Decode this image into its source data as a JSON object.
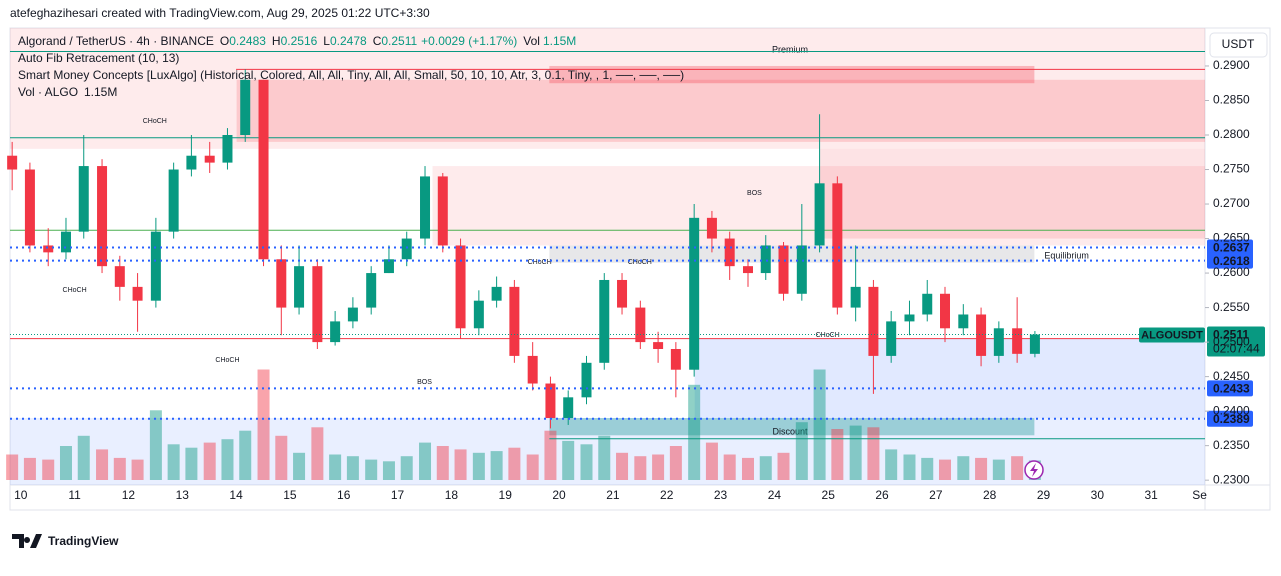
{
  "header": {
    "credit": "atefeghazihesari created with TradingView.com, Aug 29, 2025 01:22 UTC+3:30",
    "logo": "TradingView"
  },
  "chart_data": {
    "type": "candlestick",
    "symbol": "Algorand / TetherUS · 4h · BINANCE",
    "legend_items": [
      {
        "label": "O",
        "value": 0.2483
      },
      {
        "label": "H",
        "value": 0.2516
      },
      {
        "label": "L",
        "value": 0.2478
      },
      {
        "label": "C",
        "value": 0.2511
      }
    ],
    "change": "+0.0029 (+1.17%)",
    "volume_label": "Vol",
    "volume_value": "1.15M",
    "indicators": [
      "Auto Fib Retracement (10, 13)",
      "Smart Money Concepts [LuxAlgo] (Historical, Colored, All, All, Tiny, All, All, Small, 50, 10, 10, Atr, 3, 0.1, Tiny, , 1, ──, ──, ──)"
    ],
    "volume_indicator": {
      "label": "Vol · ALGO",
      "value": "1.15M"
    },
    "currency": "USDT",
    "up_color": "#089981",
    "down_color": "#f23645",
    "x": [
      9.84,
      10.17,
      10.51,
      10.84,
      11.17,
      11.51,
      11.84,
      12.17,
      12.51,
      12.84,
      13.17,
      13.51,
      13.84,
      14.17,
      14.51,
      14.84,
      15.17,
      15.51,
      15.84,
      16.17,
      16.51,
      16.84,
      17.17,
      17.51,
      17.84,
      18.17,
      18.51,
      18.84,
      19.17,
      19.51,
      19.84,
      20.17,
      20.51,
      20.84,
      21.17,
      21.51,
      21.84,
      22.17,
      22.51,
      22.84,
      23.17,
      23.51,
      23.84,
      24.17,
      24.51,
      24.84,
      25.17,
      25.51,
      25.84,
      26.17,
      26.51,
      26.84,
      27.17,
      27.51,
      27.84,
      28.17,
      28.51,
      28.84
    ],
    "open": [
      0.277,
      0.275,
      0.264,
      0.263,
      0.266,
      0.2755,
      0.261,
      0.258,
      0.256,
      0.266,
      0.275,
      0.277,
      0.276,
      0.28,
      0.288,
      0.262,
      0.255,
      0.261,
      0.25,
      0.253,
      0.255,
      0.26,
      0.262,
      0.265,
      0.274,
      0.264,
      0.252,
      0.256,
      0.258,
      0.248,
      0.244,
      0.239,
      0.242,
      0.247,
      0.259,
      0.255,
      0.25,
      0.249,
      0.246,
      0.268,
      0.265,
      0.261,
      0.26,
      0.264,
      0.257,
      0.264,
      0.273,
      0.255,
      0.258,
      0.248,
      0.253,
      0.254,
      0.257,
      0.252,
      0.254,
      0.248,
      0.252,
      0.2483
    ],
    "high": [
      0.279,
      0.276,
      0.2665,
      0.268,
      0.28,
      0.2765,
      0.2625,
      0.26,
      0.268,
      0.276,
      0.28,
      0.279,
      0.281,
      0.2895,
      0.288,
      0.264,
      0.264,
      0.262,
      0.2545,
      0.2565,
      0.261,
      0.264,
      0.266,
      0.2755,
      0.2745,
      0.265,
      0.2575,
      0.2595,
      0.259,
      0.25,
      0.245,
      0.243,
      0.248,
      0.26,
      0.26,
      0.256,
      0.2515,
      0.25,
      0.27,
      0.269,
      0.266,
      0.262,
      0.2655,
      0.2645,
      0.27,
      0.283,
      0.274,
      0.264,
      0.259,
      0.2545,
      0.256,
      0.259,
      0.258,
      0.2555,
      0.255,
      0.253,
      0.2565,
      0.2516
    ],
    "low": [
      0.272,
      0.263,
      0.261,
      0.262,
      0.265,
      0.26,
      0.256,
      0.2515,
      0.255,
      0.265,
      0.274,
      0.2745,
      0.275,
      0.279,
      0.261,
      0.251,
      0.254,
      0.249,
      0.2495,
      0.252,
      0.254,
      0.26,
      0.261,
      0.264,
      0.263,
      0.2505,
      0.251,
      0.255,
      0.247,
      0.243,
      0.2375,
      0.238,
      0.241,
      0.246,
      0.254,
      0.249,
      0.247,
      0.242,
      0.245,
      0.263,
      0.259,
      0.258,
      0.259,
      0.256,
      0.256,
      0.263,
      0.254,
      0.253,
      0.2425,
      0.247,
      0.251,
      0.253,
      0.25,
      0.251,
      0.2465,
      0.247,
      0.247,
      0.2478
    ],
    "close": [
      0.275,
      0.264,
      0.263,
      0.266,
      0.2755,
      0.261,
      0.258,
      0.256,
      0.266,
      0.275,
      0.277,
      0.276,
      0.28,
      0.288,
      0.262,
      0.255,
      0.261,
      0.25,
      0.253,
      0.255,
      0.26,
      0.262,
      0.265,
      0.274,
      0.264,
      0.252,
      0.256,
      0.258,
      0.248,
      0.244,
      0.239,
      0.242,
      0.247,
      0.259,
      0.255,
      0.25,
      0.249,
      0.246,
      0.268,
      0.265,
      0.261,
      0.26,
      0.264,
      0.257,
      0.264,
      0.273,
      0.255,
      0.258,
      0.248,
      0.253,
      0.254,
      0.257,
      0.252,
      0.254,
      0.248,
      0.252,
      0.2483,
      0.2511
    ],
    "volume": [
      1.5,
      1.3,
      1.2,
      2.0,
      2.6,
      1.8,
      1.3,
      1.2,
      4.1,
      2.1,
      1.9,
      2.2,
      2.4,
      2.9,
      6.5,
      2.6,
      1.6,
      3.1,
      1.5,
      1.4,
      1.2,
      1.1,
      1.4,
      2.2,
      2.0,
      1.8,
      1.6,
      1.7,
      1.9,
      1.5,
      2.9,
      2.3,
      2.1,
      2.6,
      1.6,
      1.4,
      1.5,
      2.0,
      5.6,
      2.2,
      1.5,
      1.3,
      1.4,
      1.6,
      3.4,
      6.5,
      3.0,
      3.2,
      3.1,
      1.8,
      1.5,
      1.3,
      1.2,
      1.4,
      1.3,
      1.2,
      1.4,
      1.15
    ],
    "xlim": [
      9.8,
      32
    ],
    "xticks": [
      10,
      11,
      12,
      13,
      14,
      15,
      16,
      17,
      18,
      19,
      20,
      21,
      22,
      23,
      24,
      25,
      26,
      27,
      28,
      29,
      30,
      31,
      {
        "value": 31.9,
        "label": "Se"
      }
    ],
    "ylim": [
      0.2293,
      0.2955
    ],
    "yticks": [
      {
        "value": 0.23,
        "label": "0.2300"
      },
      {
        "value": 0.235,
        "label": "0.2350"
      },
      {
        "value": 0.24,
        "label": "0.2400"
      },
      {
        "value": 0.245,
        "label": "0.2450"
      },
      {
        "value": 0.25,
        "label": "0.2500"
      },
      {
        "value": 0.255,
        "label": "0.2550"
      },
      {
        "value": 0.26,
        "label": "0.2600"
      },
      {
        "value": 0.265,
        "label": "0.2650"
      },
      {
        "value": 0.27,
        "label": "0.2700"
      },
      {
        "value": 0.275,
        "label": "0.2750"
      },
      {
        "value": 0.28,
        "label": "0.2800"
      },
      {
        "value": 0.285,
        "label": "0.2850"
      },
      {
        "value": 0.29,
        "label": "0.2900"
      }
    ],
    "zones": [
      {
        "x": [
          9.8,
          32
        ],
        "y": [
          0.278,
          0.2955
        ],
        "color": "rgba(242,54,69,0.10)",
        "label": "Premium"
      },
      {
        "x": [
          14.01,
          32
        ],
        "y": [
          0.279,
          0.288
        ],
        "color": "rgba(242,54,69,0.18)"
      },
      {
        "x": [
          19.82,
          28.83
        ],
        "y": [
          0.2875,
          0.29
        ],
        "color": "rgba(242,54,69,0.30)"
      },
      {
        "x": [
          17.65,
          32
        ],
        "y": [
          0.264,
          0.2755
        ],
        "color": "rgba(242,54,69,0.10)"
      },
      {
        "x": [
          24.84,
          32
        ],
        "y": [
          0.265,
          0.278
        ],
        "color": "rgba(242,54,69,0.14)"
      },
      {
        "x": [
          19.82,
          28.83
        ],
        "y": [
          0.2615,
          0.264
        ],
        "color": "rgba(120,123,134,0.18)",
        "label": "Equilibrium"
      },
      {
        "x": [
          22.52,
          32
        ],
        "y": [
          0.239,
          0.2505
        ],
        "color": "rgba(41,98,255,0.14)"
      },
      {
        "x": [
          19.82,
          28.83
        ],
        "y": [
          0.2365,
          0.239
        ],
        "color": "rgba(8,153,129,0.35)"
      },
      {
        "x": [
          9.8,
          32
        ],
        "y": [
          0.2293,
          0.239
        ],
        "color": "rgba(41,98,255,0.10)",
        "label": "Discount"
      }
    ],
    "levels": [
      {
        "x": 9.8,
        "value": 0.2921,
        "color": "#089981"
      },
      {
        "x": 14.0,
        "value": 0.2895,
        "color": "#f23645"
      },
      {
        "x": 9.8,
        "value": 0.2796,
        "color": "#089981"
      },
      {
        "x": 9.8,
        "value": 0.2662,
        "color": "#4caf50"
      },
      {
        "x": 9.8,
        "value": 0.2505,
        "color": "#f23645"
      },
      {
        "x": 19.82,
        "value": 0.236,
        "color": "#089981"
      }
    ],
    "annotations": [
      {
        "text": "CHoCH",
        "x": 12.49,
        "y": 0.282,
        "color": "#089981"
      },
      {
        "text": "CHoCH",
        "x": 11.0,
        "y": 0.2575,
        "color": "#f23645"
      },
      {
        "text": "CHoCH",
        "x": 13.84,
        "y": 0.2474,
        "color": "#f23645"
      },
      {
        "text": "BOS",
        "x": 17.5,
        "y": 0.2442,
        "color": "#f23645"
      },
      {
        "text": "CHoCH",
        "x": 19.64,
        "y": 0.2616,
        "color": "#f23645"
      },
      {
        "text": "CHoCH",
        "x": 21.5,
        "y": 0.2616,
        "color": "#089981"
      },
      {
        "text": "BOS",
        "x": 23.63,
        "y": 0.2716,
        "color": "#089981"
      },
      {
        "text": "CHoCH",
        "x": 24.99,
        "y": 0.251,
        "color": "#f23645"
      }
    ],
    "price_labels": [
      0.2637,
      0.2618,
      0.2433,
      0.2389
    ],
    "price_label_color": "#2962ff",
    "last_price": {
      "symbol": "ALGOUSDT",
      "value": 0.2511,
      "timer": "02:07:44",
      "color": "#089981"
    }
  }
}
